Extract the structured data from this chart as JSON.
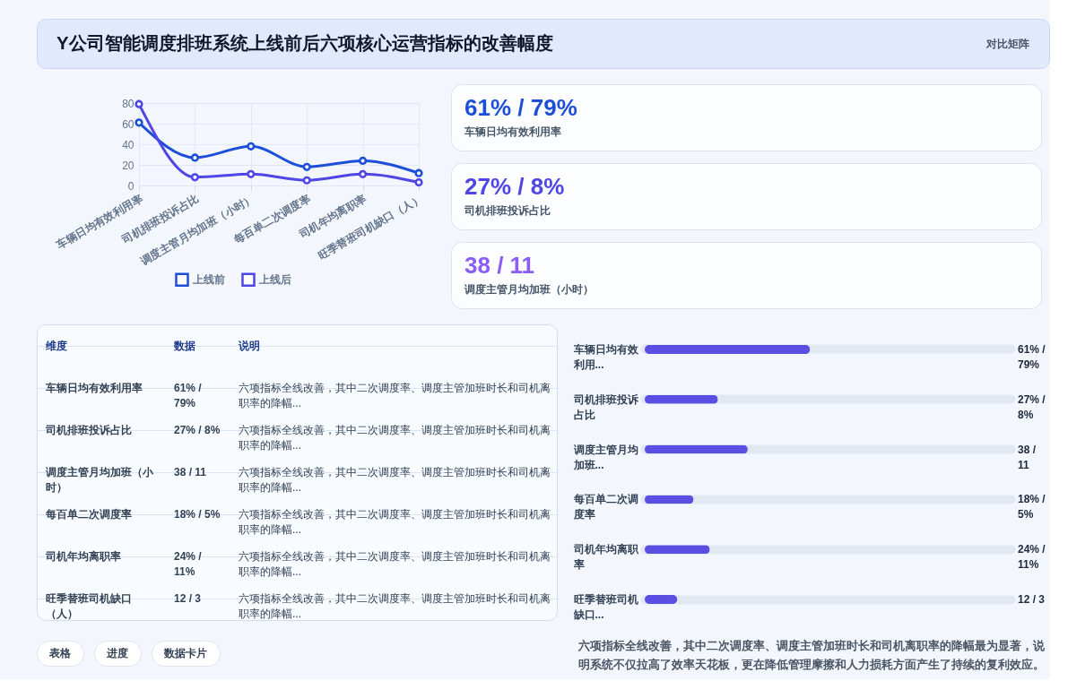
{
  "chart_data": [
    {
      "type": "other",
      "title": "Y公司智能调度排班系统上线前后六项核心运营指标的改善幅度",
      "annotations": [
        "对比矩阵"
      ]
    },
    {
      "type": "line",
      "categories": [
        "车辆日均有效利用率",
        "司机排班投诉占比",
        "调度主管月均加班（小时）",
        "每百单二次调度率",
        "司机年均离职率",
        "旺季替班司机缺口（人）"
      ],
      "series": [
        {
          "name": "上线前",
          "color": "#1d4ed8",
          "values": [
            61,
            27,
            38,
            18,
            24,
            12
          ]
        },
        {
          "name": "上线后",
          "color": "#4f46e5",
          "values": [
            79,
            8,
            11,
            5,
            11,
            3
          ]
        }
      ],
      "ylim": [
        0,
        80
      ],
      "yticks": [
        0,
        20,
        40,
        60,
        80
      ],
      "grid": true,
      "legend": "bottom",
      "marker": "circle"
    },
    {
      "type": "other",
      "title": "61% / 79%",
      "subtitle": "车辆日均有效利用率",
      "colors": [
        "#1d4ed8"
      ]
    },
    {
      "type": "other",
      "title": "27% / 8%",
      "subtitle": "司机排班投诉占比",
      "colors": [
        "#4f46e5"
      ]
    },
    {
      "type": "other",
      "title": "38 / 11",
      "subtitle": "调度主管月均加班（小时）",
      "colors": [
        "#8b5cf6"
      ]
    },
    {
      "type": "other",
      "ylabel": "维度",
      "categories": [
        "数据",
        "说明"
      ],
      "y_categories": [
        "车辆日均有效利用率",
        "司机排班投诉占比",
        "调度主管月均加班（小时）",
        "每百单二次调度率",
        "司机年均离职率",
        "旺季替班司机缺口（人）"
      ],
      "cell_labels": [
        [
          "61% / 79%",
          "六项指标全线改善，其中二次调度率、调度主管加班时长和司机离职率的降幅..."
        ],
        [
          "27% / 8%",
          "六项指标全线改善，其中二次调度率、调度主管加班时长和司机离职率的降幅..."
        ],
        [
          "38 / 11",
          "六项指标全线改善，其中二次调度率、调度主管加班时长和司机离职率的降幅..."
        ],
        [
          "18% / 5%",
          "六项指标全线改善，其中二次调度率、调度主管加班时长和司机离职率的降幅..."
        ],
        [
          "24% / 11%",
          "六项指标全线改善，其中二次调度率、调度主管加班时长和司机离职率的降幅..."
        ],
        [
          "12 / 3",
          "六项指标全线改善，其中二次调度率、调度主管加班时长和司机离职率的降幅..."
        ]
      ]
    },
    {
      "type": "bar",
      "orientation": "horizontal",
      "categories": [
        "车辆日均有效利用...",
        "司机排班投诉占比",
        "调度主管月均加班...",
        "每百单二次调度率",
        "司机年均离职率",
        "旺季替班司机缺口..."
      ],
      "values": [
        61,
        27,
        38,
        18,
        24,
        12
      ],
      "value_labels": [
        "61% / 79%",
        "27% / 8%",
        "38 / 11",
        "18% / 5%",
        "24% / 11%",
        "12 / 3"
      ],
      "color": "#5a4fe2",
      "xlim": [
        0,
        135
      ],
      "grid": "y",
      "tick_labels": "y",
      "annotations": [
        "六项指标全线改善，其中二次调度率、调度主管加班时长和司机离职率的降幅最为显著，说明系统不仅拉高了效率天花板，更在降低管理摩擦和人力损耗方面产生了持续的复利效应。"
      ]
    },
    {
      "type": "other",
      "annotations": [
        "表格",
        "进度",
        "数据卡片"
      ]
    }
  ]
}
